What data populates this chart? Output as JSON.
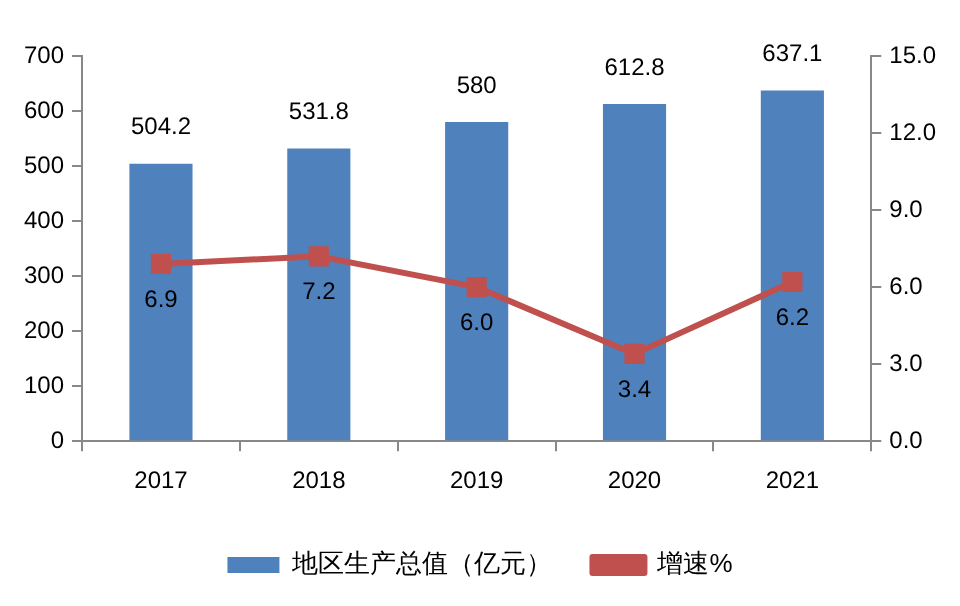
{
  "chart_data": {
    "type": "bar",
    "categories": [
      "2017",
      "2018",
      "2019",
      "2020",
      "2021"
    ],
    "series": [
      {
        "name": "地区生产总值（亿元）",
        "color": "#4f81bd",
        "values": [
          504.2,
          531.8,
          580,
          612.8,
          637.1
        ],
        "value_labels": [
          "504.2",
          "531.8",
          "580",
          "612.8",
          "637.1"
        ]
      },
      {
        "name": "增速%",
        "type": "line",
        "axis": "y2",
        "color": "#c0504d",
        "marker": "square",
        "values": [
          6.9,
          7.2,
          6.0,
          3.4,
          6.2
        ],
        "value_labels": [
          "6.9",
          "7.2",
          "6.0",
          "3.4",
          "6.2"
        ]
      }
    ],
    "ylim": [
      0,
      700
    ],
    "yticks": [
      0,
      100,
      200,
      300,
      400,
      500,
      600,
      700
    ],
    "y2lim": [
      0,
      15
    ],
    "y2ticks": [
      {
        "value": 0,
        "label": "0.0"
      },
      {
        "value": 3,
        "label": "3.0"
      },
      {
        "value": 6,
        "label": "6.0"
      },
      {
        "value": 9,
        "label": "9.0"
      },
      {
        "value": 12,
        "label": "12.0"
      },
      {
        "value": 15,
        "label": "15.0"
      }
    ],
    "grid": false,
    "legend": "bottom"
  }
}
